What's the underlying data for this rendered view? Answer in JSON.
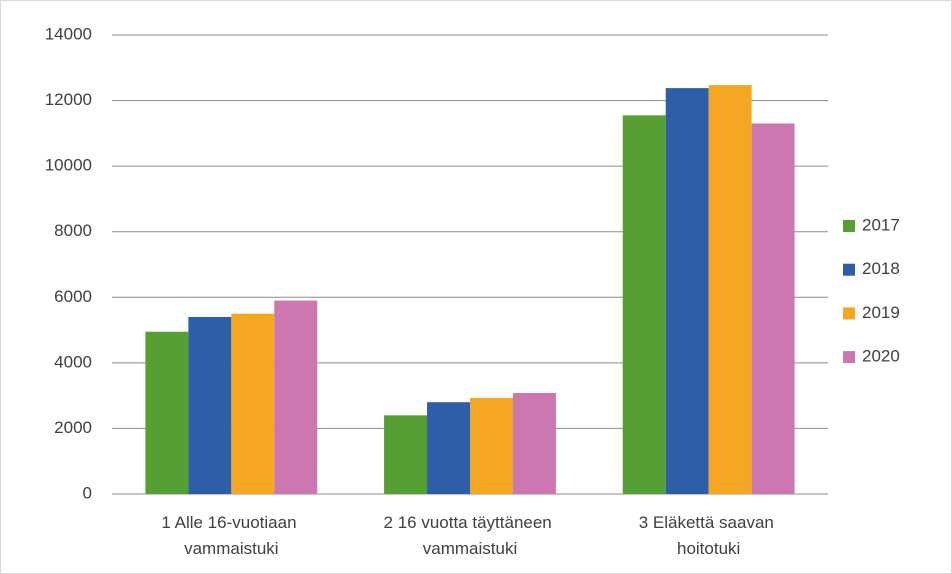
{
  "chart_data": {
    "type": "bar",
    "categories": [
      "1 Alle 16-vuotiaan vammaistuki",
      "2 16 vuotta täyttäneen vammaistuki",
      "3 Eläkettä saavan hoitotuki"
    ],
    "series": [
      {
        "name": "2017",
        "color": "#56a033",
        "values": [
          4950,
          2400,
          11550
        ]
      },
      {
        "name": "2018",
        "color": "#2e5ea8",
        "values": [
          5400,
          2800,
          12380
        ]
      },
      {
        "name": "2019",
        "color": "#f5a623",
        "values": [
          5500,
          2930,
          12470
        ]
      },
      {
        "name": "2020",
        "color": "#cc77b0",
        "values": [
          5900,
          3080,
          11300
        ]
      }
    ],
    "ylim": [
      0,
      14000
    ],
    "yticks": [
      0,
      2000,
      4000,
      6000,
      8000,
      10000,
      12000,
      14000
    ],
    "grid": true,
    "legend": "right"
  }
}
